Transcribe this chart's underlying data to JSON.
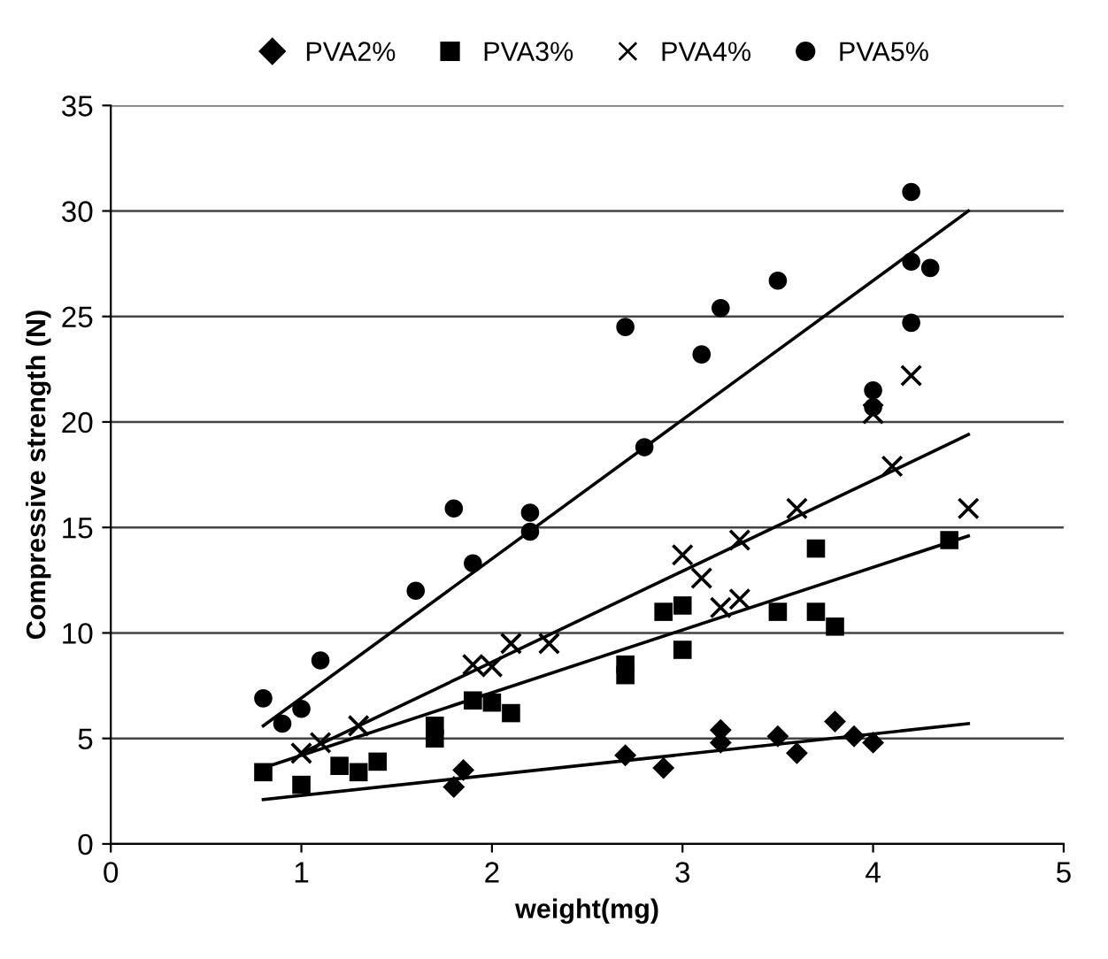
{
  "chart_data": {
    "type": "scatter",
    "xlabel": "weight(mg)",
    "ylabel": "Compressive strength (N)",
    "xlim": [
      0,
      5
    ],
    "xticks": [
      0,
      1,
      2,
      3,
      4,
      5
    ],
    "ylim": [
      0,
      35
    ],
    "yticks": [
      0,
      5,
      10,
      15,
      20,
      25,
      30,
      35
    ],
    "grid": "y",
    "legend": "top",
    "series": [
      {
        "name": "PVA2%",
        "color": "#000000",
        "marker": "diamond",
        "x": [
          1.8,
          1.85,
          2.7,
          2.9,
          3.2,
          3.2,
          3.5,
          3.6,
          3.8,
          3.9,
          4.0
        ],
        "values": [
          2.7,
          3.5,
          4.2,
          3.6,
          5.4,
          4.8,
          5.1,
          4.3,
          5.8,
          5.1,
          4.8
        ]
      },
      {
        "name": "PVA3%",
        "color": "#000000",
        "marker": "square",
        "x": [
          0.8,
          1.0,
          1.2,
          1.3,
          1.4,
          1.7,
          1.7,
          1.9,
          2.0,
          2.1,
          2.7,
          2.7,
          2.9,
          3.0,
          3.0,
          3.5,
          3.7,
          3.7,
          3.8,
          4.4
        ],
        "values": [
          3.4,
          2.8,
          3.7,
          3.4,
          3.9,
          5.6,
          5.0,
          6.8,
          6.7,
          6.2,
          8.5,
          8.0,
          11,
          11.3,
          9.2,
          11,
          14,
          11,
          10.3,
          14.4
        ]
      },
      {
        "name": "PVA4%",
        "color": "#000000",
        "marker": "cross",
        "x": [
          1.0,
          1.1,
          1.3,
          1.9,
          2.0,
          2.1,
          2.3,
          3.0,
          3.1,
          3.2,
          3.3,
          3.3,
          3.6,
          4.0,
          4.1,
          4.2,
          4.5
        ],
        "values": [
          4.3,
          4.8,
          5.6,
          8.5,
          8.4,
          9.5,
          9.5,
          13.7,
          12.6,
          11.2,
          11.6,
          14.4,
          15.9,
          20.4,
          17.9,
          22.2,
          15.9
        ]
      },
      {
        "name": "PVA5%",
        "color": "#000000",
        "marker": "circle",
        "x": [
          0.8,
          0.9,
          1.0,
          1.1,
          1.6,
          1.8,
          1.9,
          2.2,
          2.2,
          2.7,
          2.8,
          3.1,
          3.2,
          3.5,
          4.0,
          4.0,
          4.2,
          4.2,
          4.2,
          4.3
        ],
        "values": [
          6.9,
          5.7,
          6.4,
          8.7,
          12,
          15.9,
          13.3,
          15.7,
          14.8,
          24.5,
          18.8,
          23.2,
          25.4,
          26.7,
          21.5,
          20.7,
          30.9,
          27.6,
          24.7,
          27.3
        ]
      },
      {
        "type": "line",
        "color": "#000000",
        "marker": "none",
        "x": [
          0.8,
          4.5
        ],
        "values": [
          2.1,
          5.7
        ]
      },
      {
        "type": "line",
        "color": "#000000",
        "marker": "none",
        "x": [
          0.8,
          4.5
        ],
        "values": [
          3.6,
          14.6
        ]
      },
      {
        "type": "line",
        "color": "#000000",
        "marker": "none",
        "x": [
          1.0,
          4.5
        ],
        "values": [
          4.3,
          19.4
        ]
      },
      {
        "type": "line",
        "color": "#000000",
        "marker": "none",
        "x": [
          0.8,
          4.5
        ],
        "values": [
          5.6,
          30
        ]
      }
    ]
  }
}
